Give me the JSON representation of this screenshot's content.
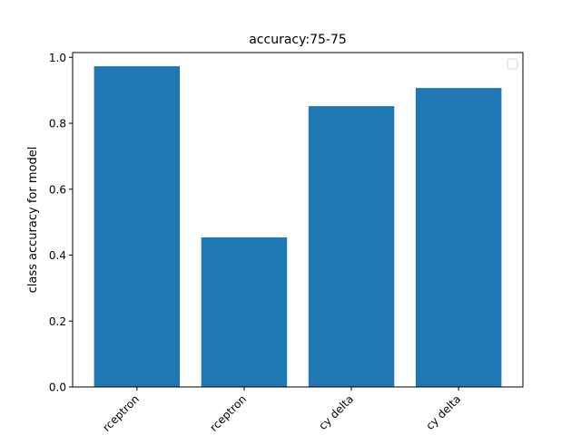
{
  "chart_data": {
    "type": "bar",
    "title": "accuracy:75-75",
    "xlabel": "",
    "ylabel": "class accuracy for model",
    "categories": [
      "rceptron",
      "rceptron",
      "cy delta",
      "cy delta"
    ],
    "values": [
      0.973,
      0.454,
      0.852,
      0.907
    ],
    "ylim": [
      0,
      1.0
    ],
    "yticks": [
      0.0,
      0.2,
      0.4,
      0.6,
      0.8,
      1.0
    ],
    "ytick_labels": [
      "0.0",
      "0.2",
      "0.4",
      "0.6",
      "0.8",
      "1.0"
    ],
    "bar_color": "#1f77b4",
    "grid": false,
    "legend": "top-right, empty",
    "tick_label_rotation": "45 degrees"
  }
}
